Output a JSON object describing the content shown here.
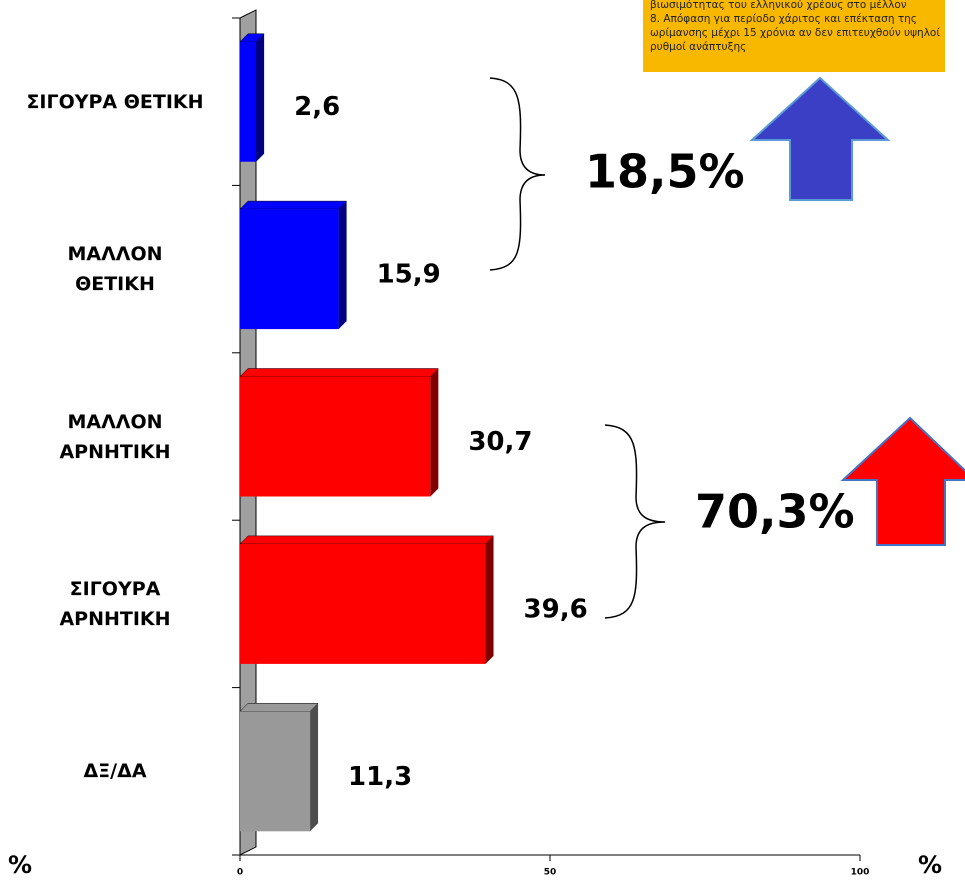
{
  "chart_data": {
    "type": "bar",
    "orientation": "horizontal",
    "categories": [
      "ΣΙΓΟΥΡΑ ΘΕΤΙΚΗ",
      "ΜΑΛΛΟΝ\nΘΕΤΙΚΗ",
      "ΜΑΛΛΟΝ\nΑΡΝΗΤΙΚΗ",
      "ΣΙΓΟΥΡΑ\nΑΡΝΗΤΙΚΗ",
      "ΔΞ/ΔΑ"
    ],
    "values": [
      2.6,
      15.9,
      30.7,
      39.6,
      11.3
    ],
    "value_labels": [
      "2,6",
      "15,9",
      "30,7",
      "39,6",
      "11,3"
    ],
    "colors": [
      "#0000ff",
      "#0000ff",
      "#ff0000",
      "#ff0000",
      "#999999"
    ],
    "side_colors": [
      "#000080",
      "#000080",
      "#800000",
      "#800000",
      "#4d4d4d"
    ],
    "xlim": [
      0,
      100
    ],
    "xticks": [
      0,
      50,
      100
    ],
    "axis_labels": [
      "%",
      "%"
    ],
    "annotations": [
      "18,5%",
      "70,3%"
    ],
    "note": [
      "βιωσιμότητας του  ελληνικού χρέους  στο μέλλον",
      "8. Απόφαση για περίοδο χάριτος και επέκταση της ωρίμανσης μέχρι 15 χρόνια αν δεν επιτευχθούν υψηλοί ρυθμοί ανάπτυξης"
    ]
  }
}
